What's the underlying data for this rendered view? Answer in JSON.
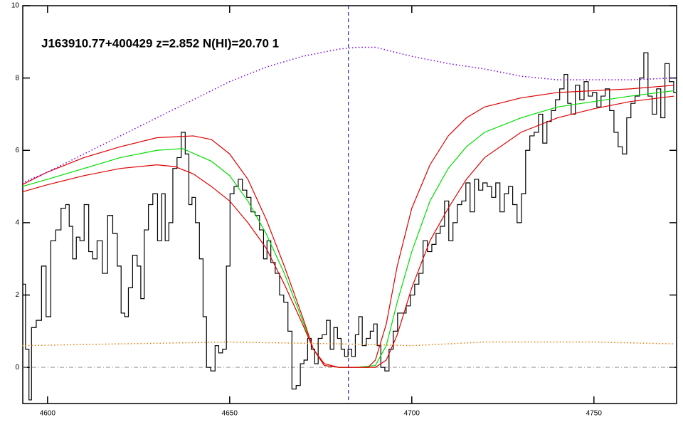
{
  "chart_data": {
    "type": "line",
    "title": "J163910.77+400429 z=2.852 N(HI)=20.70 1",
    "xlim": [
      4593.2,
      4772.7
    ],
    "ylim": [
      -1,
      10
    ],
    "xticks": [
      4600,
      4650,
      4700,
      4750
    ],
    "yticks": [
      0,
      2,
      4,
      6,
      8,
      10
    ],
    "vline": {
      "value": 4682.6,
      "color": "#0000cc"
    },
    "hline": {
      "value": 0,
      "color": "#999999"
    },
    "series": [
      {
        "color": "#000000",
        "style": "steps",
        "x": [
          4593.2,
          4594.7,
          4595.1,
          4596.1,
          4597.7,
          4599.0,
          4600.2,
          4601.6,
          4602.9,
          4604.5,
          4605.5,
          4606.4,
          4607.4,
          4608.4,
          4609.4,
          4610.7,
          4611.9,
          4612.9,
          4614.3,
          4615.8,
          4617.2,
          4618.6,
          4619.7,
          4620.7,
          4621.7,
          4622.7,
          4624.0,
          4625.2,
          4626.0,
          4627.1,
          4628.3,
          4629.5,
          4630.9,
          4631.8,
          4632.8,
          4633.8,
          4635.0,
          4636.1,
          4637.3,
          4638.3,
          4639.3,
          4640.0,
          4641.2,
          4642.2,
          4643.2,
          4644.1,
          4645.5,
          4646.5,
          4647.5,
          4648.6,
          4649.6,
          4650.6,
          4651.8,
          4652.9,
          4654.1,
          4655.3,
          4656.4,
          4657.6,
          4658.8,
          4659.8,
          4660.7,
          4661.9,
          4663.1,
          4664.3,
          4665.4,
          4666.6,
          4667.6,
          4668.9,
          4669.9,
          4670.9,
          4671.9,
          4672.9,
          4673.8,
          4674.8,
          4676.0,
          4677.1,
          4678.1,
          4679.1,
          4680.1,
          4681.1,
          4682.0,
          4683.0,
          4684.0,
          4685.0,
          4685.9,
          4686.9,
          4688.1,
          4689.1,
          4690.0,
          4691.0,
          4692.0,
          4693.2,
          4694.3,
          4695.5,
          4696.7,
          4697.9,
          4699.0,
          4700.2,
          4701.4,
          4702.5,
          4703.7,
          4704.9,
          4706.1,
          4707.2,
          4708.4,
          4709.6,
          4710.7,
          4711.9,
          4713.1,
          4714.3,
          4715.4,
          4716.6,
          4717.8,
          4718.9,
          4720.1,
          4721.3,
          4722.5,
          4723.6,
          4724.8,
          4726.0,
          4727.1,
          4728.3,
          4729.5,
          4730.7,
          4731.8,
          4733.0,
          4734.2,
          4735.4,
          4736.5,
          4737.7,
          4738.9,
          4740.0,
          4741.2,
          4742.4,
          4743.2,
          4744.3,
          4745.5,
          4746.7,
          4747.9,
          4749.0,
          4750.2,
          4751.4,
          4752.5,
          4753.7,
          4754.9,
          4756.1,
          4757.2,
          4758.4,
          4759.6,
          4760.7,
          4761.9,
          4763.1,
          4764.3,
          4765.4,
          4766.6,
          4767.8,
          4768.9,
          4770.1,
          4771.3,
          4772.5
        ],
        "values": [
          2.3,
          0.5,
          -0.9,
          1.1,
          1.3,
          2.8,
          1.4,
          3.5,
          3.8,
          4.4,
          4.5,
          3.9,
          3.0,
          3.6,
          3.5,
          4.5,
          3.2,
          3.0,
          3.5,
          2.6,
          4.2,
          3.7,
          2.8,
          1.5,
          1.4,
          2.2,
          3.1,
          2.8,
          1.9,
          3.8,
          4.5,
          4.8,
          3.5,
          4.8,
          3.5,
          4.0,
          5.5,
          5.8,
          6.5,
          5.9,
          4.5,
          4.7,
          4.0,
          3.0,
          1.4,
          0.0,
          -0.1,
          0.6,
          0.4,
          0.5,
          2.8,
          4.8,
          5.0,
          5.2,
          4.9,
          4.7,
          4.3,
          4.2,
          3.8,
          3.0,
          3.5,
          2.9,
          2.6,
          2.0,
          1.8,
          1.0,
          -0.6,
          -0.5,
          0.1,
          0.2,
          0.8,
          0.5,
          0.1,
          0.8,
          0.9,
          1.3,
          0.5,
          1.1,
          0.8,
          0.5,
          0.3,
          0.5,
          0.3,
          0.9,
          1.4,
          0.6,
          0.8,
          1.0,
          1.2,
          0.6,
          0.0,
          -0.1,
          0.5,
          1.0,
          1.5,
          1.5,
          1.7,
          2.0,
          2.3,
          2.6,
          3.5,
          3.2,
          3.4,
          3.7,
          3.9,
          4.6,
          3.5,
          4.0,
          4.5,
          4.6,
          5.1,
          4.3,
          5.2,
          4.9,
          5.1,
          5.0,
          4.7,
          5.1,
          4.3,
          4.8,
          5.0,
          4.5,
          4.0,
          4.8,
          6.0,
          6.4,
          6.5,
          7.0,
          6.2,
          6.8,
          7.1,
          7.4,
          7.7,
          8.1,
          7.3,
          7.0,
          7.8,
          7.4,
          7.9,
          7.5,
          7.6,
          7.2,
          7.5,
          7.7,
          7.1,
          6.5,
          6.1,
          5.9,
          6.9,
          7.3,
          7.5,
          8.0,
          8.7,
          7.5,
          7.0,
          7.7,
          6.9,
          8.4,
          7.9,
          7.6
        ]
      },
      {
        "color": "#00dd00",
        "style": "solid",
        "x": [
          4593,
          4600,
          4610,
          4620,
          4630,
          4637,
          4645,
          4650,
          4655,
          4660,
          4665,
          4670,
          4673,
          4676,
          4680,
          4685,
          4690,
          4693,
          4696,
          4700,
          4705,
          4710,
          4715,
          4720,
          4730,
          4740,
          4750,
          4760,
          4772
        ],
        "values": [
          5.0,
          5.2,
          5.5,
          5.8,
          6.0,
          6.05,
          5.7,
          5.3,
          4.6,
          3.7,
          2.6,
          1.3,
          0.5,
          0.05,
          0,
          0,
          0.05,
          0.6,
          1.8,
          3.2,
          4.6,
          5.5,
          6.1,
          6.5,
          6.9,
          7.2,
          7.35,
          7.5,
          7.65
        ]
      },
      {
        "color": "#dd0000",
        "style": "solid",
        "x": [
          4593,
          4600,
          4610,
          4620,
          4630,
          4640,
          4645,
          4650,
          4655,
          4660,
          4665,
          4670,
          4673,
          4676,
          4680,
          4688,
          4690,
          4693,
          4696,
          4700,
          4705,
          4710,
          4715,
          4720,
          4730,
          4740,
          4750,
          4760,
          4772
        ],
        "values": [
          5.05,
          5.4,
          5.8,
          6.1,
          6.35,
          6.4,
          6.3,
          5.9,
          5.2,
          4.1,
          2.8,
          1.4,
          0.5,
          0.05,
          0,
          0,
          0.2,
          1.2,
          2.8,
          4.4,
          5.6,
          6.4,
          6.9,
          7.2,
          7.45,
          7.6,
          7.65,
          7.7,
          7.8
        ]
      },
      {
        "color": "#dd0000",
        "style": "solid",
        "x": [
          4593,
          4600,
          4610,
          4620,
          4630,
          4635,
          4640,
          4645,
          4650,
          4655,
          4660,
          4665,
          4670,
          4673,
          4676,
          4680,
          4685,
          4690,
          4693,
          4696,
          4700,
          4705,
          4710,
          4715,
          4720,
          4730,
          4740,
          4750,
          4760,
          4772
        ],
        "values": [
          4.85,
          5.05,
          5.3,
          5.5,
          5.6,
          5.55,
          5.35,
          5.0,
          4.6,
          4.0,
          3.3,
          2.3,
          1.2,
          0.5,
          0.1,
          0,
          0,
          0,
          0.2,
          0.9,
          2.2,
          3.5,
          4.4,
          5.2,
          5.8,
          6.5,
          6.9,
          7.15,
          7.35,
          7.5
        ]
      },
      {
        "color": "#7700ee",
        "style": "dotted",
        "x": [
          4593,
          4600,
          4610,
          4620,
          4630,
          4640,
          4650,
          4660,
          4670,
          4680,
          4685,
          4690,
          4700,
          4710,
          4720,
          4730,
          4740,
          4750,
          4760,
          4772
        ],
        "values": [
          5.1,
          5.4,
          5.9,
          6.4,
          6.9,
          7.4,
          7.9,
          8.3,
          8.6,
          8.8,
          8.85,
          8.85,
          8.6,
          8.4,
          8.25,
          8.05,
          7.95,
          7.95,
          7.95,
          8.0
        ]
      },
      {
        "color": "#ee7700",
        "style": "dotted",
        "x": [
          4593,
          4620,
          4650,
          4680,
          4700,
          4720,
          4750,
          4772
        ],
        "values": [
          0.6,
          0.65,
          0.7,
          0.65,
          0.6,
          0.7,
          0.7,
          0.65
        ]
      }
    ]
  }
}
